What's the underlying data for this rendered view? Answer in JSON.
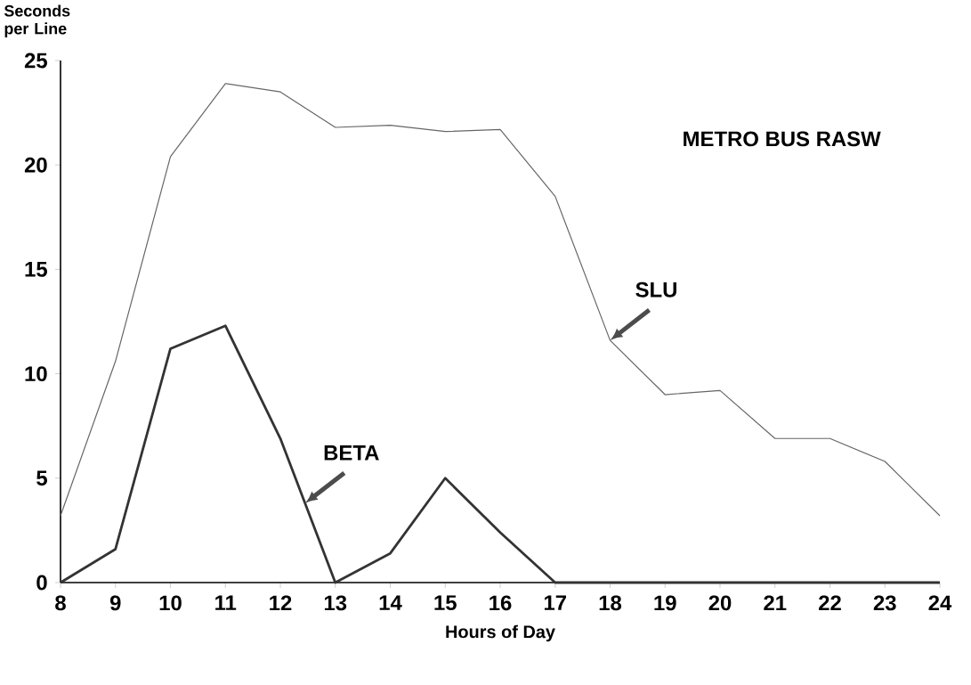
{
  "chart_data": {
    "type": "line",
    "xlabel": "Hours of Day",
    "ylabel": "Seconds per Line",
    "x": [
      8,
      9,
      10,
      11,
      12,
      13,
      14,
      15,
      16,
      17,
      18,
      19,
      20,
      21,
      22,
      23,
      24
    ],
    "series": [
      {
        "color": "#666666",
        "values": [
          3.2,
          10.6,
          20.4,
          23.9,
          23.5,
          21.8,
          21.9,
          21.6,
          21.7,
          18.5,
          11.6,
          9.0,
          9.2,
          6.9,
          6.9,
          5.8,
          3.2
        ]
      },
      {
        "color": "#333333",
        "values": [
          0,
          1.6,
          11.2,
          12.3,
          6.9,
          0,
          1.4,
          5.0,
          2.4,
          0,
          0,
          0,
          0,
          0,
          0,
          0,
          0
        ]
      }
    ],
    "xlim": [
      8,
      24
    ],
    "xticks": [
      8,
      9,
      10,
      11,
      12,
      13,
      14,
      15,
      16,
      17,
      18,
      19,
      20,
      21,
      22,
      23,
      24
    ],
    "ylim": [
      0,
      25
    ],
    "yticks": [
      0,
      5,
      10,
      15,
      20,
      25
    ],
    "grid": false,
    "marker": "none",
    "line_style": "solid",
    "annotations": [
      "METRO BUS RASW",
      {
        "text": "SLU",
        "x": 18,
        "y": 11.6
      },
      {
        "text": "BETA",
        "x": 12.45,
        "y": 3.8
      }
    ]
  }
}
